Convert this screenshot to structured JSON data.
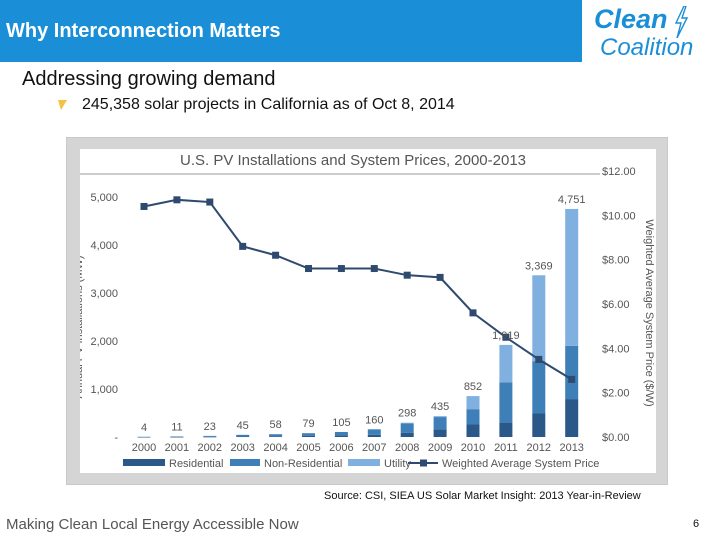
{
  "header": {
    "title": "Why Interconnection Matters"
  },
  "logo": {
    "line1": "Clean",
    "line2": "Coalition"
  },
  "content": {
    "subtitle": "Addressing growing demand",
    "bullet": "245,358 solar projects in California as of Oct 8, 2014"
  },
  "source": "Source: CSI, SIEA US Solar Market Insight: 2013 Year-in-Review",
  "footer": {
    "tagline": "Making Clean Local Energy Accessible Now",
    "page": "6"
  },
  "colors": {
    "title_bar": "#1a8fd8",
    "residential": "#2a5888",
    "non_residential": "#3e7fb7",
    "utility": "#7fb0e0",
    "line": "#2e4a6e"
  },
  "chart_data": {
    "type": "bar",
    "title": "U.S. PV Installations and System Prices, 2000-2013",
    "ylabel": "Annual PV Installations (MW)",
    "y2label": "Weighted Average System Price ($/W)",
    "ylim": [
      0,
      5000
    ],
    "y2lim": [
      0,
      12
    ],
    "yticks": [
      "-",
      "1,000",
      "2,000",
      "3,000",
      "4,000",
      "5,000"
    ],
    "y2ticks": [
      "$0.00",
      "$2.00",
      "$4.00",
      "$6.00",
      "$8.00",
      "$10.00",
      "$12.00"
    ],
    "categories": [
      "2000",
      "2001",
      "2002",
      "2003",
      "2004",
      "2005",
      "2006",
      "2007",
      "2008",
      "2009",
      "2010",
      "2011",
      "2012",
      "2013"
    ],
    "totals_labels": [
      "4",
      "11",
      "23",
      "45",
      "58",
      "79",
      "105",
      "160",
      "298",
      "435",
      "852",
      "1,919",
      "3,369",
      "4,751"
    ],
    "series": [
      {
        "name": "Residential",
        "values": [
          1,
          3,
          6,
          12,
          16,
          22,
          30,
          45,
          85,
          160,
          260,
          300,
          490,
          790
        ]
      },
      {
        "name": "Non-Residential",
        "values": [
          3,
          8,
          17,
          33,
          42,
          57,
          75,
          115,
          200,
          255,
          320,
          840,
          1090,
          1110
        ]
      },
      {
        "name": "Utility",
        "values": [
          0,
          0,
          0,
          0,
          0,
          0,
          0,
          0,
          13,
          20,
          272,
          779,
          1789,
          2851
        ]
      },
      {
        "name": "Weighted Average System Price",
        "type": "line",
        "values": [
          10.4,
          10.7,
          10.6,
          8.6,
          8.2,
          7.6,
          7.6,
          7.6,
          7.3,
          7.2,
          5.6,
          4.5,
          3.5,
          2.6
        ]
      }
    ],
    "legend": "bottom",
    "grid": false
  }
}
